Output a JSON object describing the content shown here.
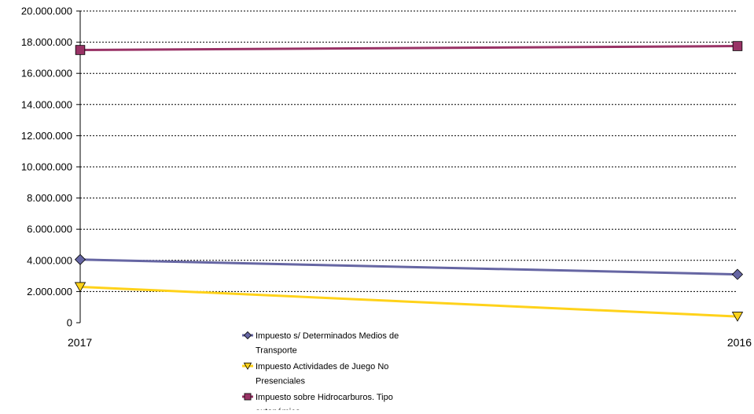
{
  "chart_data": {
    "type": "line",
    "categories": [
      "2017",
      "2016"
    ],
    "y_ticks": [
      "0",
      "2.000.000",
      "4.000.000",
      "6.000.000",
      "8.000.000",
      "10.000.000",
      "12.000.000",
      "14.000.000",
      "16.000.000",
      "18.000.000",
      "20.000.000"
    ],
    "ylim": [
      0,
      20000000
    ],
    "grid": "horizontal-dotted",
    "legend_position": "bottom-center",
    "series": [
      {
        "name": "Impuesto s/ Determinados Medios de Transporte",
        "legend_lines": [
          "Impuesto s/ Determinados Medios de",
          "Transporte"
        ],
        "values": [
          4050000,
          3100000
        ],
        "color": "#6666a3",
        "marker": "diamond"
      },
      {
        "name": "Impuesto Actividades de Juego No Presenciales",
        "legend_lines": [
          "Impuesto Actividades de Juego No",
          "Presenciales"
        ],
        "values": [
          2300000,
          400000
        ],
        "color": "#ffd21a",
        "marker": "triangle-down"
      },
      {
        "name": "Impuesto sobre Hidrocarburos. Tipo autonómico",
        "legend_lines": [
          "Impuesto sobre Hidrocarburos. Tipo",
          "autonómico"
        ],
        "values": [
          17500000,
          17750000
        ],
        "color": "#993366",
        "marker": "square"
      }
    ]
  }
}
